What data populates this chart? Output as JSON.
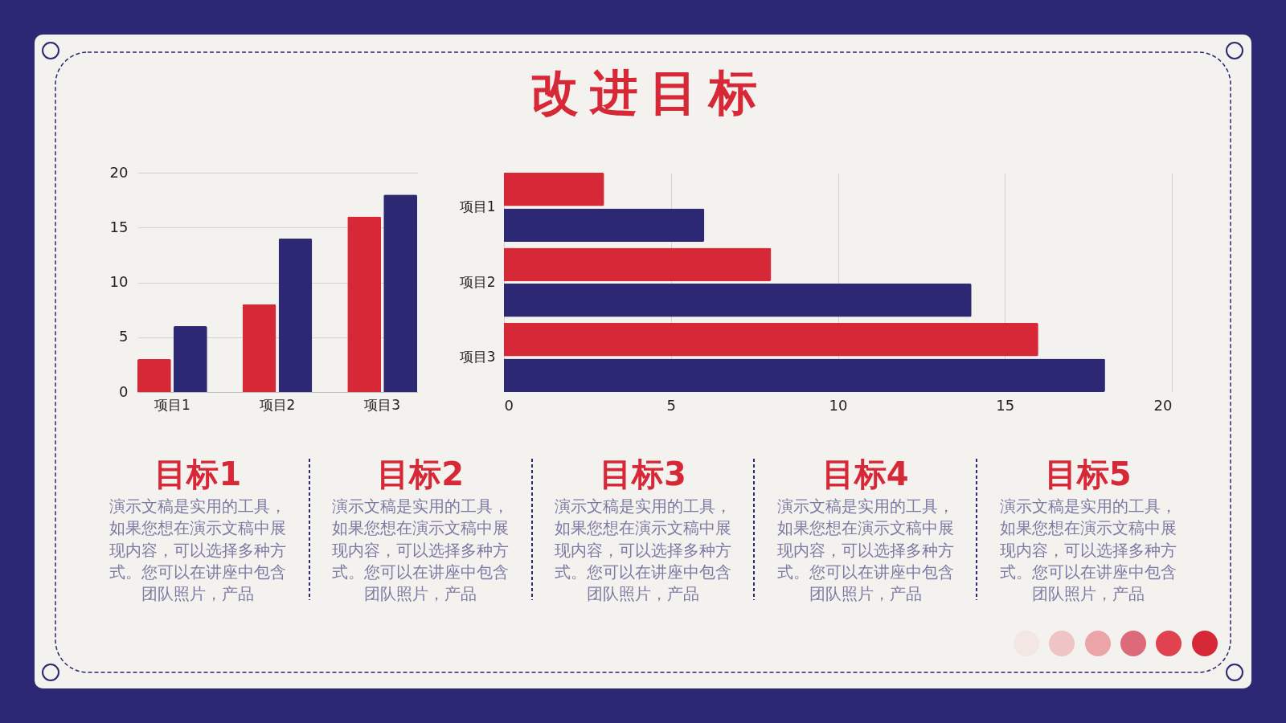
{
  "chart_data": [
    {
      "type": "bar",
      "categories": [
        "项目1",
        "项目2",
        "项目3"
      ],
      "series": [
        {
          "color": "#d62837",
          "values": [
            3,
            8,
            16
          ]
        },
        {
          "color": "#2d2873",
          "values": [
            6,
            14,
            18
          ]
        }
      ],
      "ylim": [
        0,
        20
      ],
      "yticks": [
        0,
        5,
        10,
        15,
        20
      ],
      "grid": "y"
    },
    {
      "type": "bar",
      "title": "改进目标",
      "orientation": "horizontal",
      "categories": [
        "项目1",
        "项目2",
        "项目3"
      ],
      "series": [
        {
          "color": "#d62837",
          "values": [
            3,
            8,
            16
          ]
        },
        {
          "color": "#2d2873",
          "values": [
            6,
            14,
            18
          ]
        }
      ],
      "xlim": [
        0,
        20
      ],
      "xticks": [
        0,
        5,
        10,
        15,
        20
      ],
      "grid": "x"
    },
    {
      "type": "other",
      "annotations": [
        "目标1",
        "演示文稿是实用的工具，如果您想在演示文稿中展现内容，可以选择多种方式。您可以在讲座中包含团队照片，产品",
        "目标2",
        "演示文稿是实用的工具，如果您想在演示文稿中展现内容，可以选择多种方式。您可以在讲座中包含团队照片，产品",
        "目标3",
        "演示文稿是实用的工具，如果您想在演示文稿中展现内容，可以选择多种方式。您可以在讲座中包含团队照片，产品",
        "目标4",
        "演示文稿是实用的工具，如果您想在演示文稿中展现内容，可以选择多种方式。您可以在讲座中包含团队照片，产品",
        "目标5",
        "演示文稿是实用的工具，如果您想在演示文稿中展现内容，可以选择多种方式。您可以在讲座中包含团队照片，产品"
      ]
    }
  ]
}
